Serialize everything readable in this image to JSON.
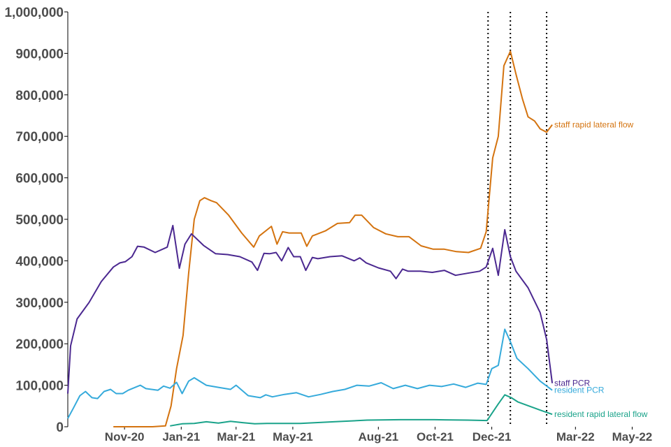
{
  "chart_data": {
    "type": "line",
    "title": "",
    "xlabel": "",
    "ylabel": "",
    "ylim": [
      0,
      1000000
    ],
    "y_ticks": [
      {
        "value": 0,
        "label": "0"
      },
      {
        "value": 100000,
        "label": "100,000"
      },
      {
        "value": 200000,
        "label": "200,000"
      },
      {
        "value": 300000,
        "label": "300,000"
      },
      {
        "value": 400000,
        "label": "400,000"
      },
      {
        "value": 500000,
        "label": "500,000"
      },
      {
        "value": 600000,
        "label": "600,000"
      },
      {
        "value": 700000,
        "label": "700,000"
      },
      {
        "value": 800000,
        "label": "800,000"
      },
      {
        "value": 900000,
        "label": "900,000"
      },
      {
        "value": 1000000,
        "label": "1,000,000"
      }
    ],
    "x_range": [
      "2020-09-01",
      "2022-06-08"
    ],
    "x_ticks": [
      {
        "date": "2020-11-01",
        "label": "Nov-20"
      },
      {
        "date": "2021-01-01",
        "label": "Jan-21"
      },
      {
        "date": "2021-03-01",
        "label": "Mar-21"
      },
      {
        "date": "2021-05-01",
        "label": "May-21"
      },
      {
        "date": "2021-08-01",
        "label": "Aug-21"
      },
      {
        "date": "2021-10-01",
        "label": "Oct-21"
      },
      {
        "date": "2021-12-01",
        "label": "Dec-21"
      },
      {
        "date": "2022-03-01",
        "label": "Mar-22"
      },
      {
        "date": "2022-05-01",
        "label": "May-22"
      }
    ],
    "vertical_markers": [
      "2021-11-27",
      "2021-12-21",
      "2022-01-29"
    ],
    "grid": false,
    "series": [
      {
        "name": "staff rapid lateral flow",
        "color": "#d4730f",
        "points": [
          [
            "2020-10-20",
            0
          ],
          [
            "2020-11-10",
            0
          ],
          [
            "2020-12-01",
            0
          ],
          [
            "2020-12-15",
            2000
          ],
          [
            "2020-12-21",
            50000
          ],
          [
            "2020-12-27",
            140000
          ],
          [
            "2021-01-03",
            220000
          ],
          [
            "2021-01-09",
            370000
          ],
          [
            "2021-01-15",
            500000
          ],
          [
            "2021-01-21",
            545000
          ],
          [
            "2021-01-26",
            552000
          ],
          [
            "2021-02-02",
            545000
          ],
          [
            "2021-02-08",
            540000
          ],
          [
            "2021-02-21",
            510000
          ],
          [
            "2021-03-07",
            467000
          ],
          [
            "2021-03-20",
            433000
          ],
          [
            "2021-03-26",
            460000
          ],
          [
            "2021-04-08",
            483000
          ],
          [
            "2021-04-14",
            440000
          ],
          [
            "2021-04-20",
            470000
          ],
          [
            "2021-04-27",
            467000
          ],
          [
            "2021-05-10",
            467000
          ],
          [
            "2021-05-16",
            435000
          ],
          [
            "2021-05-22",
            460000
          ],
          [
            "2021-06-05",
            472000
          ],
          [
            "2021-06-18",
            490000
          ],
          [
            "2021-07-01",
            492000
          ],
          [
            "2021-07-07",
            510000
          ],
          [
            "2021-07-14",
            510000
          ],
          [
            "2021-07-27",
            480000
          ],
          [
            "2021-08-09",
            465000
          ],
          [
            "2021-08-22",
            458000
          ],
          [
            "2021-09-03",
            458000
          ],
          [
            "2021-09-16",
            436000
          ],
          [
            "2021-09-29",
            428000
          ],
          [
            "2021-10-11",
            428000
          ],
          [
            "2021-10-24",
            422000
          ],
          [
            "2021-11-06",
            420000
          ],
          [
            "2021-11-19",
            430000
          ],
          [
            "2021-11-25",
            470000
          ],
          [
            "2021-12-02",
            648000
          ],
          [
            "2021-12-08",
            700000
          ],
          [
            "2021-12-14",
            870000
          ],
          [
            "2021-12-21",
            905000
          ],
          [
            "2021-12-27",
            850000
          ],
          [
            "2022-01-03",
            790000
          ],
          [
            "2022-01-09",
            747000
          ],
          [
            "2022-01-16",
            737000
          ],
          [
            "2022-01-22",
            718000
          ],
          [
            "2022-01-29",
            710000
          ],
          [
            "2022-02-04",
            728000
          ]
        ]
      },
      {
        "name": "staff PCR",
        "color": "#4b2890",
        "points": [
          [
            "2020-09-01",
            80000
          ],
          [
            "2020-09-04",
            195000
          ],
          [
            "2020-09-11",
            260000
          ],
          [
            "2020-09-24",
            300000
          ],
          [
            "2020-10-07",
            350000
          ],
          [
            "2020-10-20",
            385000
          ],
          [
            "2020-10-27",
            395000
          ],
          [
            "2020-11-02",
            398000
          ],
          [
            "2020-11-09",
            410000
          ],
          [
            "2020-11-15",
            435000
          ],
          [
            "2020-11-22",
            433000
          ],
          [
            "2020-12-04",
            420000
          ],
          [
            "2020-12-17",
            433000
          ],
          [
            "2020-12-23",
            485000
          ],
          [
            "2020-12-30",
            382000
          ],
          [
            "2021-01-05",
            440000
          ],
          [
            "2021-01-12",
            465000
          ],
          [
            "2021-01-25",
            437000
          ],
          [
            "2021-02-07",
            417000
          ],
          [
            "2021-02-20",
            415000
          ],
          [
            "2021-03-05",
            410000
          ],
          [
            "2021-03-18",
            397000
          ],
          [
            "2021-03-24",
            377000
          ],
          [
            "2021-03-31",
            418000
          ],
          [
            "2021-04-06",
            417000
          ],
          [
            "2021-04-13",
            420000
          ],
          [
            "2021-04-19",
            400000
          ],
          [
            "2021-04-26",
            432000
          ],
          [
            "2021-05-02",
            410000
          ],
          [
            "2021-05-09",
            410000
          ],
          [
            "2021-05-15",
            377000
          ],
          [
            "2021-05-22",
            408000
          ],
          [
            "2021-05-28",
            405000
          ],
          [
            "2021-06-10",
            410000
          ],
          [
            "2021-06-23",
            412000
          ],
          [
            "2021-07-06",
            400000
          ],
          [
            "2021-07-12",
            407000
          ],
          [
            "2021-07-19",
            395000
          ],
          [
            "2021-08-01",
            383000
          ],
          [
            "2021-08-14",
            375000
          ],
          [
            "2021-08-20",
            357000
          ],
          [
            "2021-08-27",
            380000
          ],
          [
            "2021-09-02",
            375000
          ],
          [
            "2021-09-15",
            375000
          ],
          [
            "2021-09-28",
            372000
          ],
          [
            "2021-10-11",
            377000
          ],
          [
            "2021-10-23",
            365000
          ],
          [
            "2021-11-05",
            370000
          ],
          [
            "2021-11-18",
            375000
          ],
          [
            "2021-11-25",
            385000
          ],
          [
            "2021-12-02",
            430000
          ],
          [
            "2021-12-08",
            365000
          ],
          [
            "2021-12-15",
            475000
          ],
          [
            "2021-12-21",
            410000
          ],
          [
            "2021-12-27",
            375000
          ],
          [
            "2022-01-09",
            335000
          ],
          [
            "2022-01-22",
            275000
          ],
          [
            "2022-01-29",
            210000
          ],
          [
            "2022-02-04",
            105000
          ]
        ]
      },
      {
        "name": "resident PCR",
        "color": "#35aadb",
        "points": [
          [
            "2020-09-01",
            20000
          ],
          [
            "2020-09-07",
            45000
          ],
          [
            "2020-09-14",
            75000
          ],
          [
            "2020-09-20",
            85000
          ],
          [
            "2020-09-27",
            70000
          ],
          [
            "2020-10-03",
            68000
          ],
          [
            "2020-10-10",
            85000
          ],
          [
            "2020-10-17",
            90000
          ],
          [
            "2020-10-23",
            80000
          ],
          [
            "2020-10-30",
            80000
          ],
          [
            "2020-11-05",
            88000
          ],
          [
            "2020-11-18",
            100000
          ],
          [
            "2020-11-24",
            92000
          ],
          [
            "2020-12-07",
            88000
          ],
          [
            "2020-12-13",
            98000
          ],
          [
            "2020-12-20",
            93000
          ],
          [
            "2020-12-27",
            107000
          ],
          [
            "2021-01-02",
            80000
          ],
          [
            "2021-01-09",
            110000
          ],
          [
            "2021-01-15",
            118000
          ],
          [
            "2021-01-28",
            100000
          ],
          [
            "2021-02-10",
            95000
          ],
          [
            "2021-02-23",
            90000
          ],
          [
            "2021-03-01",
            100000
          ],
          [
            "2021-03-14",
            75000
          ],
          [
            "2021-03-27",
            70000
          ],
          [
            "2021-04-02",
            77000
          ],
          [
            "2021-04-09",
            72000
          ],
          [
            "2021-04-22",
            78000
          ],
          [
            "2021-05-05",
            82000
          ],
          [
            "2021-05-18",
            72000
          ],
          [
            "2021-05-31",
            78000
          ],
          [
            "2021-06-13",
            85000
          ],
          [
            "2021-06-26",
            90000
          ],
          [
            "2021-07-09",
            100000
          ],
          [
            "2021-07-22",
            98000
          ],
          [
            "2021-08-04",
            106000
          ],
          [
            "2021-08-17",
            92000
          ],
          [
            "2021-08-30",
            100000
          ],
          [
            "2021-09-12",
            92000
          ],
          [
            "2021-09-25",
            100000
          ],
          [
            "2021-10-08",
            97000
          ],
          [
            "2021-10-21",
            103000
          ],
          [
            "2021-11-03",
            95000
          ],
          [
            "2021-11-16",
            105000
          ],
          [
            "2021-11-25",
            102000
          ],
          [
            "2021-12-01",
            140000
          ],
          [
            "2021-12-08",
            148000
          ],
          [
            "2021-12-15",
            235000
          ],
          [
            "2021-12-21",
            205000
          ],
          [
            "2021-12-28",
            165000
          ],
          [
            "2022-01-09",
            140000
          ],
          [
            "2022-01-22",
            110000
          ],
          [
            "2022-02-04",
            88000
          ]
        ]
      },
      {
        "name": "resident rapid lateral flow",
        "color": "#1aa38a",
        "points": [
          [
            "2020-12-20",
            2000
          ],
          [
            "2021-01-02",
            7000
          ],
          [
            "2021-01-15",
            8000
          ],
          [
            "2021-01-28",
            12000
          ],
          [
            "2021-02-10",
            9000
          ],
          [
            "2021-02-23",
            13000
          ],
          [
            "2021-03-08",
            10000
          ],
          [
            "2021-03-21",
            7000
          ],
          [
            "2021-04-03",
            8000
          ],
          [
            "2021-05-09",
            8000
          ],
          [
            "2021-06-14",
            12000
          ],
          [
            "2021-07-20",
            16000
          ],
          [
            "2021-08-25",
            17000
          ],
          [
            "2021-09-30",
            17000
          ],
          [
            "2021-11-05",
            16000
          ],
          [
            "2021-11-26",
            15000
          ],
          [
            "2021-12-08",
            55000
          ],
          [
            "2021-12-15",
            77000
          ],
          [
            "2021-12-22",
            70000
          ],
          [
            "2021-12-29",
            60000
          ],
          [
            "2022-01-10",
            50000
          ],
          [
            "2022-01-22",
            40000
          ],
          [
            "2022-02-04",
            30000
          ]
        ]
      }
    ],
    "end_labels": [
      {
        "series": "staff rapid lateral flow",
        "text": "staff rapid lateral flow"
      },
      {
        "series": "staff PCR",
        "text": "staff PCR"
      },
      {
        "series": "resident PCR",
        "text": "resident PCR"
      },
      {
        "series": "resident rapid lateral flow",
        "text": "resident rapid lateral flow"
      }
    ]
  }
}
